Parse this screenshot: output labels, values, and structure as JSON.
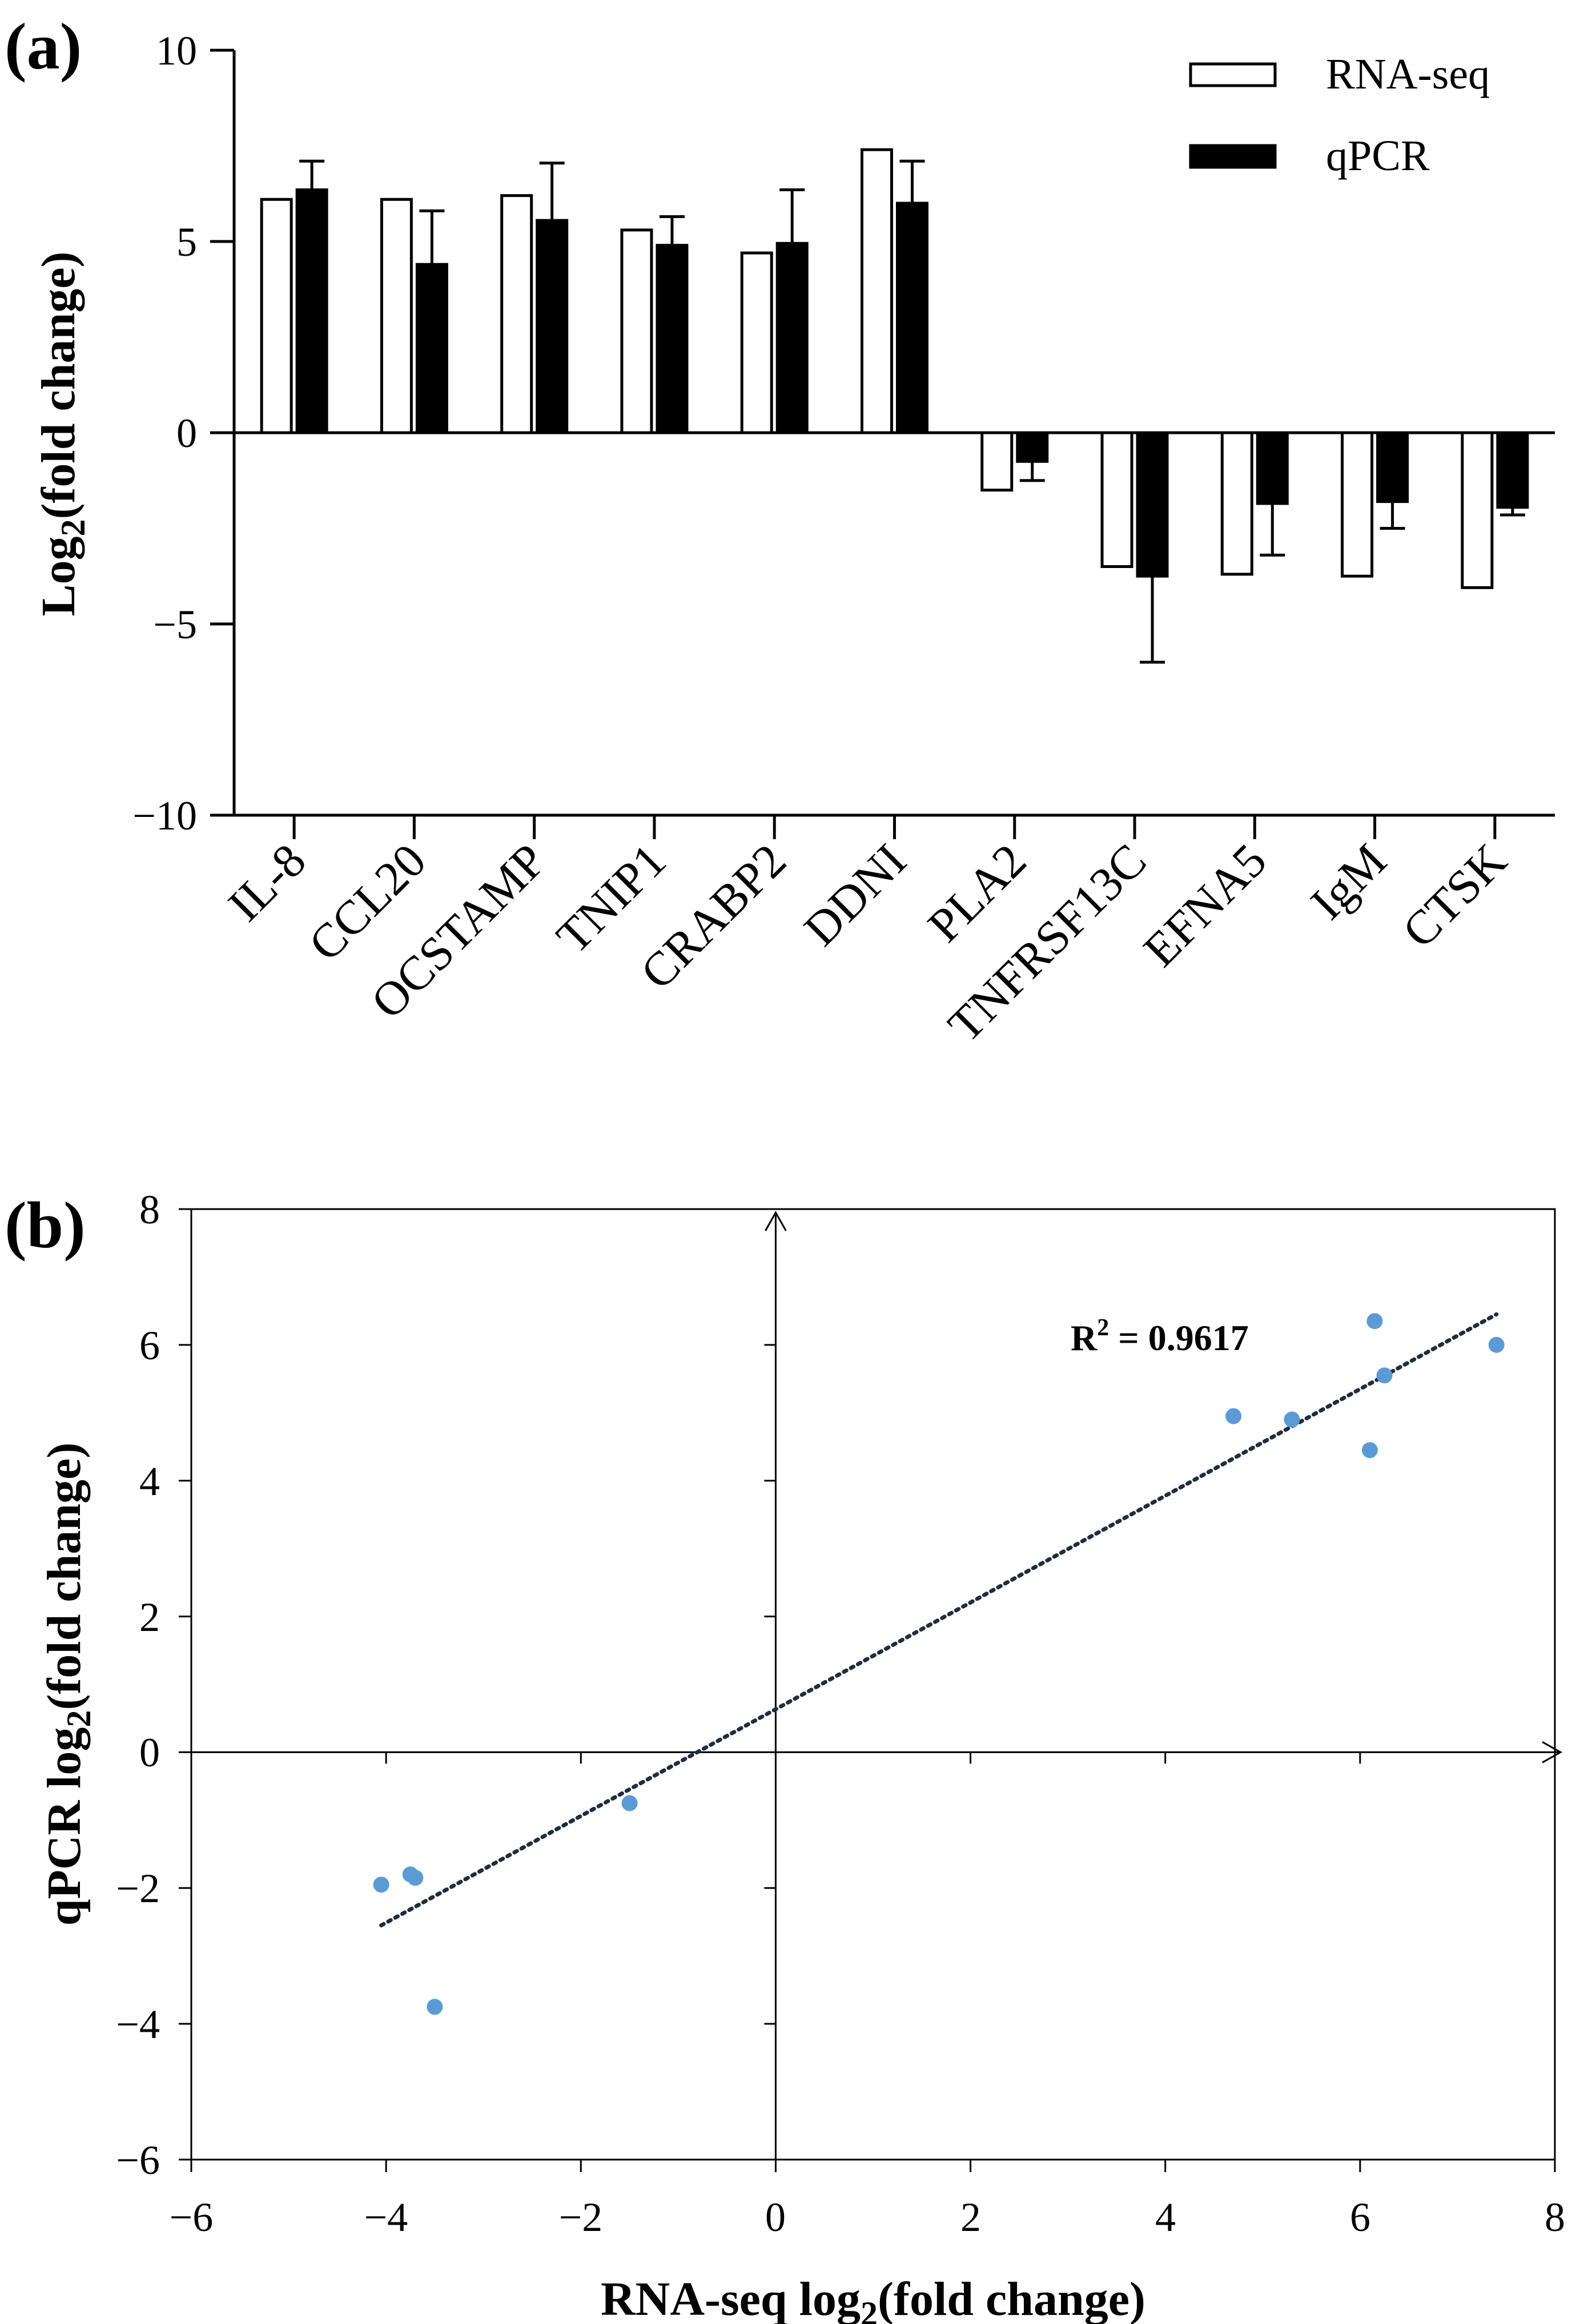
{
  "chart_data": [
    {
      "panel": "(a)",
      "type": "bar",
      "categories": [
        "IL-8",
        "CCL20",
        "OCSTAMP",
        "TNIP1",
        "CRABP2",
        "DDNI",
        "PLA2",
        "TNFRSF13C",
        "EFNA5",
        "IgM",
        "CTSK"
      ],
      "series": [
        {
          "name": "RNA-seq",
          "values": [
            6.1,
            6.1,
            6.2,
            5.3,
            4.7,
            7.4,
            -1.5,
            -3.5,
            -3.7,
            -3.75,
            -4.05
          ],
          "color": "#ffffff"
        },
        {
          "name": "qPCR",
          "values": [
            6.35,
            4.4,
            5.55,
            4.9,
            4.95,
            6.0,
            -0.75,
            -3.75,
            -1.85,
            -1.8,
            -1.95
          ],
          "error": [
            0.75,
            1.4,
            1.5,
            0.75,
            1.4,
            1.1,
            0.5,
            2.25,
            1.35,
            0.7,
            0.2
          ],
          "color": "#000000"
        }
      ],
      "ylabel": "Log",
      "ylabel_sub": "2",
      "ylabel_rest": "(fold change)",
      "ylim": [
        -10,
        10
      ],
      "yticks": [
        "10",
        "5",
        "0",
        "−5",
        "−10"
      ],
      "legend": "top-right"
    },
    {
      "panel": "(b)",
      "type": "scatter",
      "points": [
        {
          "x": 6.15,
          "y": 6.35
        },
        {
          "x": 6.1,
          "y": 4.45
        },
        {
          "x": 6.25,
          "y": 5.55
        },
        {
          "x": 5.3,
          "y": 4.9
        },
        {
          "x": 4.7,
          "y": 4.95
        },
        {
          "x": 7.4,
          "y": 6.0
        },
        {
          "x": -1.5,
          "y": -0.75
        },
        {
          "x": -3.5,
          "y": -3.75
        },
        {
          "x": -3.7,
          "y": -1.85
        },
        {
          "x": -3.75,
          "y": -1.8
        },
        {
          "x": -4.05,
          "y": -1.95
        }
      ],
      "trendline": {
        "x": [
          -4.05,
          7.4
        ],
        "y": [
          -2.55,
          6.45
        ]
      },
      "annotation_label": "R",
      "annotation_sup": "2",
      "annotation_value": " = 0.9617",
      "xlabel": "RNA-seq log",
      "xlabel_sub": "2",
      "xlabel_rest": "(fold change)",
      "ylabel": "qPCR log",
      "ylabel_sub": "2",
      "ylabel_rest": "(fold change)",
      "xlim": [
        -6,
        8
      ],
      "ylim": [
        -6,
        8
      ],
      "xticks": [
        "−6",
        "−4",
        "−2",
        "0",
        "2",
        "4",
        "6",
        "8"
      ],
      "yticks": [
        "8",
        "6",
        "4",
        "2",
        "0",
        "−2",
        "−4",
        "−6"
      ],
      "point_color": "#5b9bd5"
    }
  ]
}
